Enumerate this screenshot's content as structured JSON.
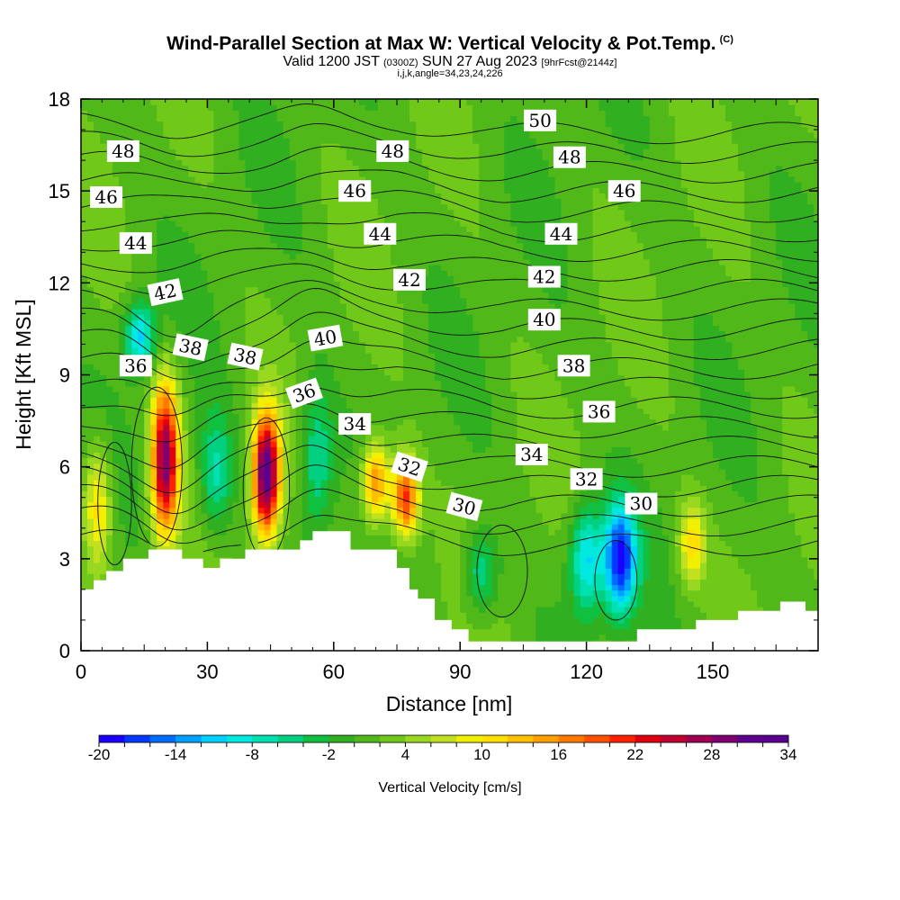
{
  "header": {
    "title": "Wind-Parallel Section at Max W: Vertical Velocity & Pot.Temp.",
    "copyright": "(C)",
    "valid_a": "Valid 1200 JST",
    "valid_utc": "(0300Z)",
    "valid_b": "SUN 27 Aug 2023",
    "fcst": "[9hrFcst@2144z]",
    "indices": "i,j,k,angle=34,23,24,226"
  },
  "chart_data": {
    "type": "heatmap",
    "xlabel": "Distance [nm]",
    "ylabel": "Height [Kft MSL]",
    "xlim": [
      0,
      175
    ],
    "ylim": [
      0,
      18
    ],
    "x_ticks": [
      0,
      30,
      60,
      90,
      120,
      150
    ],
    "y_ticks": [
      0,
      3,
      6,
      9,
      12,
      15,
      18
    ],
    "grid": false,
    "colorbar": {
      "label": "Vertical Velocity [cm/s]",
      "tick_labels": [
        "-20",
        "-14",
        "-8",
        "-2",
        "4",
        "10",
        "16",
        "22",
        "28",
        "34"
      ],
      "range": [
        -20,
        34
      ],
      "step": 2,
      "colors": [
        "#1c00ff",
        "#0038ff",
        "#006cff",
        "#00a0ff",
        "#00d0ff",
        "#00e8e0",
        "#00e0b0",
        "#00d080",
        "#10c040",
        "#30b020",
        "#50b818",
        "#70c818",
        "#98d820",
        "#c0e020",
        "#f0f000",
        "#ffe000",
        "#ffc000",
        "#ffa000",
        "#ff7800",
        "#ff5000",
        "#ff2000",
        "#e00010",
        "#c00030",
        "#a00050",
        "#800070",
        "#600090",
        "#5a0090"
      ]
    },
    "vertical_velocity_features": [
      {
        "kind": "updraft",
        "x": 20,
        "y_range": [
          3.5,
          9
        ],
        "peak": 28
      },
      {
        "kind": "updraft",
        "x": 44,
        "y_range": [
          3.5,
          8
        ],
        "peak": 32
      },
      {
        "kind": "updraft",
        "x": 70,
        "y_range": [
          4,
          7
        ],
        "peak": 16
      },
      {
        "kind": "updraft",
        "x": 77,
        "y_range": [
          3.5,
          6.5
        ],
        "peak": 20
      },
      {
        "kind": "updraft",
        "x": 4,
        "y_range": [
          2.5,
          7
        ],
        "peak": 10
      },
      {
        "kind": "updraft",
        "x": 145,
        "y_range": [
          2,
          5
        ],
        "peak": 10
      },
      {
        "kind": "downdraft",
        "x": 14,
        "y_range": [
          9,
          11.5
        ],
        "peak": -12
      },
      {
        "kind": "downdraft",
        "x": 32,
        "y_range": [
          3.5,
          8
        ],
        "peak": -8
      },
      {
        "kind": "downdraft",
        "x": 56,
        "y_range": [
          3.5,
          9
        ],
        "peak": -8
      },
      {
        "kind": "downdraft",
        "x": 95,
        "y_range": [
          1,
          4
        ],
        "peak": -8
      },
      {
        "kind": "downdraft",
        "x": 120,
        "y_range": [
          1,
          5
        ],
        "peak": -12
      },
      {
        "kind": "downdraft",
        "x": 128,
        "y_range": [
          1,
          5
        ],
        "peak": -20
      }
    ],
    "terrain_kft": [
      {
        "x": 0,
        "h": 2.0
      },
      {
        "x": 3,
        "h": 2.3
      },
      {
        "x": 6,
        "h": 2.6
      },
      {
        "x": 10,
        "h": 3.0
      },
      {
        "x": 16,
        "h": 3.3
      },
      {
        "x": 24,
        "h": 3.0
      },
      {
        "x": 29,
        "h": 2.7
      },
      {
        "x": 33,
        "h": 3.0
      },
      {
        "x": 39,
        "h": 3.3
      },
      {
        "x": 52,
        "h": 3.6
      },
      {
        "x": 55,
        "h": 3.9
      },
      {
        "x": 64,
        "h": 3.3
      },
      {
        "x": 75,
        "h": 2.7
      },
      {
        "x": 78,
        "h": 2.0
      },
      {
        "x": 80,
        "h": 1.7
      },
      {
        "x": 84,
        "h": 1.0
      },
      {
        "x": 88,
        "h": 0.7
      },
      {
        "x": 92,
        "h": 0.3
      },
      {
        "x": 132,
        "h": 0.7
      },
      {
        "x": 146,
        "h": 1.0
      },
      {
        "x": 156,
        "h": 1.3
      },
      {
        "x": 166,
        "h": 1.6
      },
      {
        "x": 172,
        "h": 1.3
      }
    ],
    "theta_contour_labels": [
      {
        "text": "48",
        "x": 10,
        "y": 16.3,
        "angle": 0
      },
      {
        "text": "46",
        "x": 6,
        "y": 14.8,
        "angle": 0
      },
      {
        "text": "44",
        "x": 13,
        "y": 13.3,
        "angle": 0
      },
      {
        "text": "42",
        "x": 20,
        "y": 11.7,
        "angle": -12
      },
      {
        "text": "38",
        "x": 26,
        "y": 9.9,
        "angle": 12
      },
      {
        "text": "38",
        "x": 39,
        "y": 9.6,
        "angle": 12
      },
      {
        "text": "36",
        "x": 13,
        "y": 9.3,
        "angle": 0
      },
      {
        "text": "40",
        "x": 58,
        "y": 10.2,
        "angle": -10
      },
      {
        "text": "36",
        "x": 53,
        "y": 8.4,
        "angle": -20
      },
      {
        "text": "34",
        "x": 65,
        "y": 7.4,
        "angle": 0
      },
      {
        "text": "32",
        "x": 78,
        "y": 6.0,
        "angle": 18
      },
      {
        "text": "30",
        "x": 91,
        "y": 4.7,
        "angle": 15
      },
      {
        "text": "48",
        "x": 74,
        "y": 16.3,
        "angle": 0
      },
      {
        "text": "46",
        "x": 65,
        "y": 15.0,
        "angle": 0
      },
      {
        "text": "44",
        "x": 71,
        "y": 13.6,
        "angle": 0
      },
      {
        "text": "42",
        "x": 78,
        "y": 12.1,
        "angle": 0
      },
      {
        "text": "50",
        "x": 109,
        "y": 17.3,
        "angle": 0
      },
      {
        "text": "48",
        "x": 116,
        "y": 16.1,
        "angle": 0
      },
      {
        "text": "46",
        "x": 129,
        "y": 15.0,
        "angle": 0
      },
      {
        "text": "44",
        "x": 114,
        "y": 13.6,
        "angle": 0
      },
      {
        "text": "42",
        "x": 110,
        "y": 12.2,
        "angle": 0
      },
      {
        "text": "40",
        "x": 110,
        "y": 10.8,
        "angle": 0
      },
      {
        "text": "38",
        "x": 117,
        "y": 9.3,
        "angle": 0
      },
      {
        "text": "36",
        "x": 123,
        "y": 7.8,
        "angle": 0
      },
      {
        "text": "34",
        "x": 107,
        "y": 6.4,
        "angle": 0
      },
      {
        "text": "32",
        "x": 120,
        "y": 5.6,
        "angle": 0
      },
      {
        "text": "30",
        "x": 133,
        "y": 4.8,
        "angle": 0
      }
    ]
  }
}
